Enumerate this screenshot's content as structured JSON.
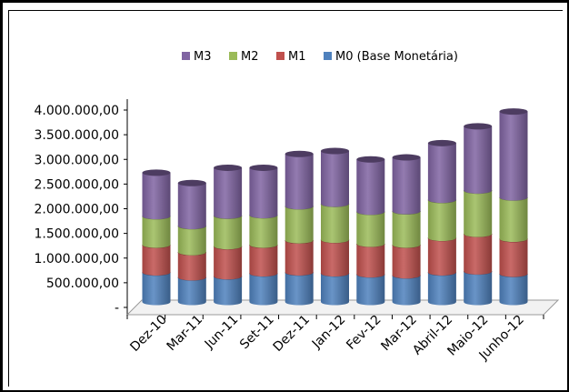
{
  "chart_data": {
    "type": "bar",
    "stacked": true,
    "style": "3d-cylinder",
    "categories": [
      "Dez-10",
      "Mar-11",
      "Jun-11",
      "Set-11",
      "Dez-11",
      "Jan-12",
      "Fev-12",
      "Mar-12",
      "Abril-12",
      "Maio-12",
      "Junho-12"
    ],
    "series": [
      {
        "name": "M0 (Base Monetária)",
        "color": "#4F81BD",
        "values": [
          600000,
          500000,
          520000,
          580000,
          600000,
          580000,
          560000,
          540000,
          600000,
          620000,
          570000
        ]
      },
      {
        "name": "M1",
        "color": "#C0504D",
        "values": [
          560000,
          510000,
          610000,
          580000,
          650000,
          680000,
          620000,
          620000,
          700000,
          760000,
          710000
        ]
      },
      {
        "name": "M2",
        "color": "#9BBB59",
        "values": [
          580000,
          530000,
          620000,
          600000,
          690000,
          730000,
          650000,
          680000,
          770000,
          880000,
          840000
        ]
      },
      {
        "name": "M3",
        "color": "#8064A2",
        "values": [
          880000,
          870000,
          970000,
          960000,
          1060000,
          1070000,
          1060000,
          1090000,
          1150000,
          1300000,
          1740000
        ]
      }
    ],
    "legend_order": [
      "M3",
      "M2",
      "M1",
      "M0 (Base Monetária)"
    ],
    "legend_position": "top",
    "y_tick_labels": [
      "-",
      "500.000,00",
      "1.000.000,00",
      "1.500.000,00",
      "2.000.000,00",
      "2.500.000,00",
      "3.000.000,00",
      "3.500.000,00",
      "4.000.000,00"
    ],
    "ylim": [
      0,
      4000000
    ],
    "grid": false,
    "title": "",
    "xlabel": "",
    "ylabel": ""
  }
}
